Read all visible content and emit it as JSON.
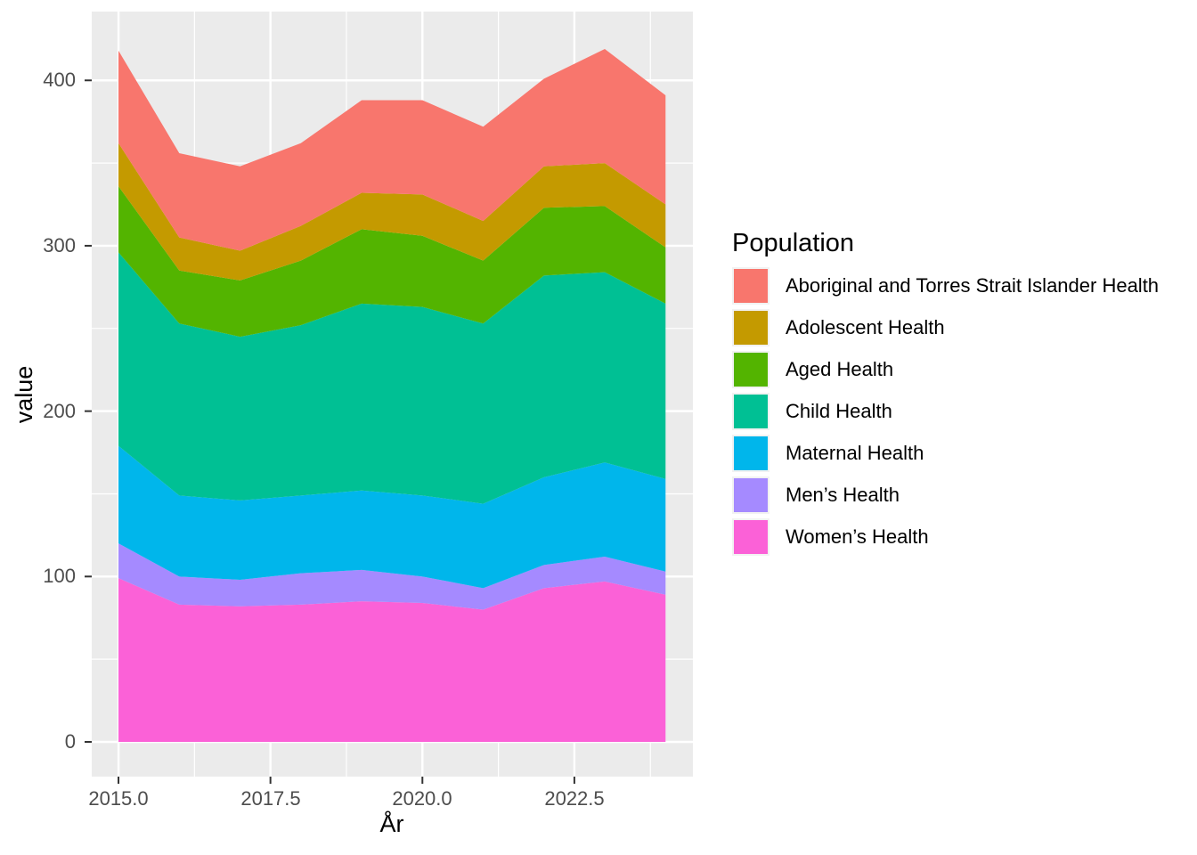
{
  "axes": {
    "x_title": "År",
    "y_title": "value",
    "x_tick_labels": [
      "2015.0",
      "2017.5",
      "2020.0",
      "2022.5"
    ],
    "y_tick_labels": [
      "0",
      "100",
      "200",
      "300",
      "400"
    ]
  },
  "legend": {
    "title": "Population",
    "items": [
      {
        "label": "Aboriginal and Torres Strait Islander Health",
        "color": "#F8766D"
      },
      {
        "label": "Adolescent Health",
        "color": "#C49A00"
      },
      {
        "label": "Aged Health",
        "color": "#53B400"
      },
      {
        "label": "Child Health",
        "color": "#00C094"
      },
      {
        "label": "Maternal Health",
        "color": "#00B6EB"
      },
      {
        "label": "Men’s Health",
        "color": "#A58AFF"
      },
      {
        "label": "Women’s Health",
        "color": "#FB61D7"
      }
    ]
  },
  "chart_data": {
    "type": "area",
    "stacked": true,
    "stack_order": "bottom_to_top",
    "title": "",
    "xlabel": "År",
    "ylabel": "value",
    "legend_title": "Population",
    "legend_position": "right",
    "grid": "major_and_minor",
    "panel_bg": "#EBEBEB",
    "grid_color": "#FFFFFF",
    "tick_color": "#333333",
    "tick_label_color": "#4D4D4D",
    "x": [
      2015,
      2016,
      2017,
      2018,
      2019,
      2020,
      2021,
      2022,
      2023,
      2024
    ],
    "x_major_ticks": [
      2015.0,
      2017.5,
      2020.0,
      2022.5
    ],
    "y_major_ticks": [
      0,
      100,
      200,
      300,
      400
    ],
    "xlim": [
      2014.56,
      2024.45
    ],
    "ylim": [
      -21,
      441.6
    ],
    "series": [
      {
        "name": "Women’s Health",
        "color": "#FB61D7",
        "values": [
          99,
          83,
          82,
          83,
          85,
          84,
          80,
          93,
          97,
          89
        ]
      },
      {
        "name": "Men’s Health",
        "color": "#A58AFF",
        "values": [
          21,
          17,
          16,
          19,
          19,
          16,
          13,
          14,
          15,
          14
        ]
      },
      {
        "name": "Maternal Health",
        "color": "#00B6EB",
        "values": [
          59,
          49,
          48,
          47,
          48,
          49,
          51,
          53,
          57,
          56
        ]
      },
      {
        "name": "Child Health",
        "color": "#00C094",
        "values": [
          117,
          104,
          99,
          103,
          113,
          114,
          109,
          122,
          115,
          106
        ]
      },
      {
        "name": "Aged Health",
        "color": "#53B400",
        "values": [
          40,
          32,
          34,
          39,
          45,
          43,
          38,
          41,
          40,
          34
        ]
      },
      {
        "name": "Adolescent Health",
        "color": "#C49A00",
        "values": [
          26,
          20,
          18,
          21,
          22,
          25,
          24,
          25,
          26,
          26
        ]
      },
      {
        "name": "Aboriginal and Torres Strait Islander Health",
        "color": "#F8766D",
        "values": [
          56,
          51,
          51,
          50,
          56,
          57,
          57,
          53,
          69,
          66
        ]
      }
    ]
  }
}
